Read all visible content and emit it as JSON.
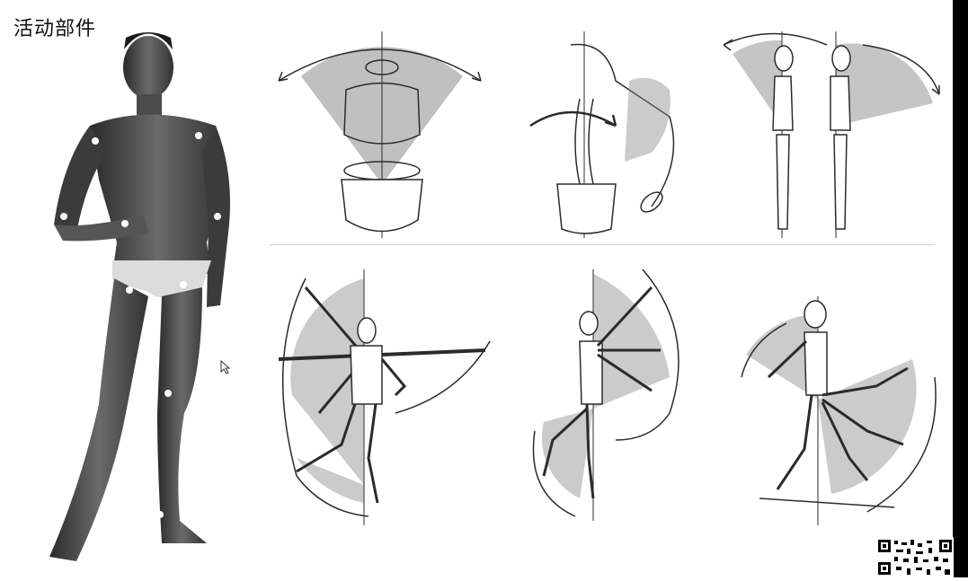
{
  "slide": {
    "title": "活动部件"
  },
  "colors": {
    "background": "#ffffff",
    "sketch_line": "#2b2b2b",
    "shading": "#8c8c8c",
    "figure_dark": "#3a3a3a",
    "joint_dot": "#ffffff"
  },
  "icons": {
    "cursor": "mouse-pointer-icon",
    "qr": "qr-code-icon"
  }
}
